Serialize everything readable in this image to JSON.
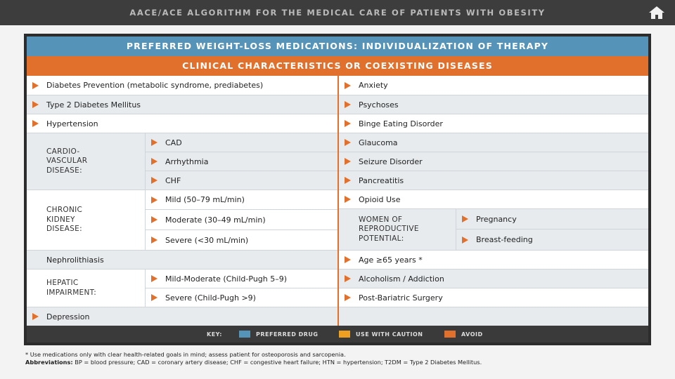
{
  "header": {
    "title": "AACE/ACE ALGORITHM FOR THE MEDICAL CARE OF PATIENTS WITH OBESITY",
    "home_icon": "home-icon"
  },
  "bars": {
    "title": "PREFERRED WEIGHT-LOSS MEDICATIONS: INDIVIDUALIZATION OF THERAPY",
    "subtitle": "CLINICAL CHARACTERISTICS OR COEXISTING DISEASES"
  },
  "left": {
    "diabetes_prevention": "Diabetes Prevention (metabolic syndrome, prediabetes)",
    "t2dm": "Type 2 Diabetes Mellitus",
    "hypertension": "Hypertension",
    "cvd": {
      "label": "CARDIO-\nVASCULAR\nDISEASE:",
      "items": [
        "CAD",
        "Arrhythmia",
        "CHF"
      ]
    },
    "ckd": {
      "label": "CHRONIC\nKIDNEY\nDISEASE:",
      "items": [
        "Mild  (50–79 mL/min)",
        "Moderate  (30–49 mL/min)",
        "Severe  (<30 mL/min)"
      ]
    },
    "nephrolithiasis": "Nephrolithiasis",
    "hepatic": {
      "label": "HEPATIC\nIMPAIRMENT:",
      "items": [
        "Mild-Moderate (Child-Pugh 5–9)",
        "Severe (Child-Pugh >9)"
      ]
    },
    "depression": "Depression"
  },
  "right": {
    "anxiety": "Anxiety",
    "psychoses": "Psychoses",
    "binge": "Binge Eating Disorder",
    "glaucoma": "Glaucoma",
    "seizure": "Seizure Disorder",
    "pancreatitis": "Pancreatitis",
    "opioid": "Opioid Use",
    "women": {
      "label": "WOMEN OF\nREPRODUCTIVE\nPOTENTIAL:",
      "items": [
        "Pregnancy",
        "Breast-feeding"
      ]
    },
    "age": "Age ≥65 years *",
    "alcoholism": "Alcoholism / Addiction",
    "bariatric": "Post-Bariatric Surgery"
  },
  "key": {
    "label": "KEY:",
    "preferred": "PREFERRED DRUG",
    "caution": "USE WITH CAUTION",
    "avoid": "AVOID",
    "colors": {
      "preferred": "#5594b8",
      "caution": "#f0a021",
      "avoid": "#e1702c"
    }
  },
  "footnotes": {
    "note": "*  Use medications only with clear health-related goals in mind; assess patient for osteoporosis and sarcopenia.",
    "abbr_label": "Abbreviations:",
    "abbr_text": " BP = blood pressure; CAD = coronary artery disease; CHF = congestive heart failure; HTN = hypertension; T2DM = Type 2 Diabetes Mellitus."
  }
}
